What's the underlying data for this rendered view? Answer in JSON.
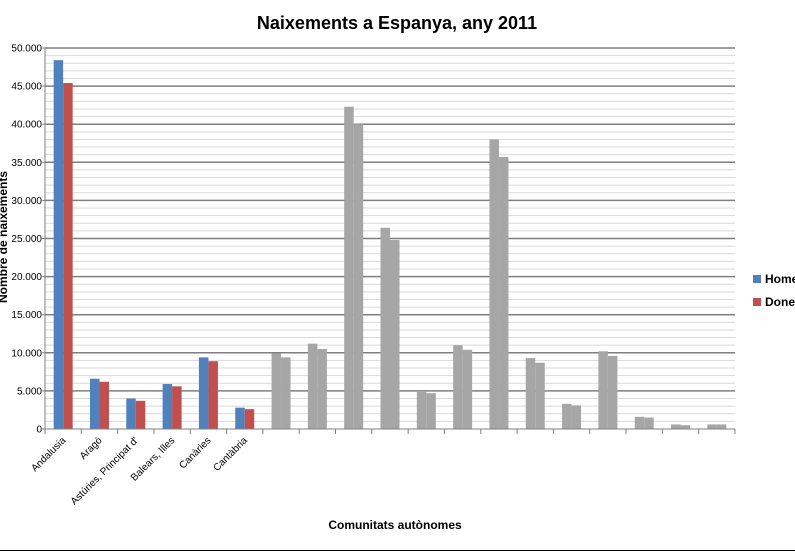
{
  "chart_data": {
    "type": "bar",
    "title": "Naixements a Espanya, any 2011",
    "xlabel": "Comunitats autònomes",
    "ylabel": "Nombre de naixements",
    "ylim": [
      0,
      50000
    ],
    "yticks": [
      "0",
      "5.000",
      "10.000",
      "15.000",
      "20.000",
      "25.000",
      "30.000",
      "35.000",
      "40.000",
      "45.000",
      "50.000"
    ],
    "grid": true,
    "legend": "right",
    "categories": [
      "Andalusia",
      "Aragó",
      "Astúries, Principat d'",
      "Balears, Illes",
      "Canàries",
      "Cantàbria",
      "",
      "",
      "",
      "",
      "",
      "",
      "",
      "",
      "",
      "",
      "",
      "",
      ""
    ],
    "series": [
      {
        "name": "Homes",
        "color": "#4F81BD",
        "values": [
          48400,
          6600,
          4000,
          5900,
          9400,
          2800,
          9900,
          11200,
          42300,
          26400,
          5000,
          11000,
          38000,
          9300,
          3300,
          10200,
          1600,
          600,
          600
        ]
      },
      {
        "name": "Dones",
        "color": "#C0504D",
        "values": [
          45400,
          6200,
          3700,
          5600,
          8900,
          2600,
          9400,
          10500,
          40000,
          24800,
          4700,
          10400,
          35700,
          8700,
          3100,
          9600,
          1500,
          500,
          600
        ]
      }
    ],
    "highlighted_count": 6,
    "muted_color": "#A6A6A6"
  }
}
